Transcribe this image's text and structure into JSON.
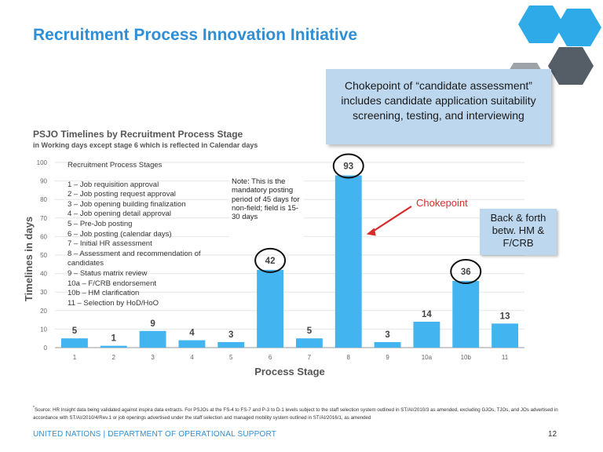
{
  "page": {
    "title": "Recruitment Process Innovation Initiative",
    "callout_main": "Chokepoint of “candidate assessment” includes candidate application suitability screening, testing, and interviewing",
    "callout_back": "Back & forth betw. HM & F/CRB",
    "note": "Note: This is the mandatory posting period of 45 days for non-field; field is 15-30 days",
    "footnote_marker": "*",
    "footnote": "Source: HR Insight data being validated against inspira data extracts. For PSJOs at the FS-4 to FS-7 and P-3 to D-1 levels subject to the staff selection system outlined in ST/AI/2010/3 as amended, excluding GJOs, TJOs, and JOs advertised in accordance with ST/AI/2010/4/Rev.1 or job openings advertised under the staff selection and managed mobility system outlined in ST/AI/2016/1, as amended",
    "footer": "UNITED NATIONS | DEPARTMENT OF OPERATIONAL SUPPORT",
    "page_number": "12",
    "stages_heading": "Recruitment Process Stages",
    "stages": [
      "1 – Job requisition approval",
      "2 – Job posting request approval",
      "3 – Job opening building finalization",
      "4 – Job opening detail approval",
      "5 – Pre-Job posting",
      "6 – Job posting (calendar days)",
      "7 – Initial HR assessment",
      "8 – Assessment and recommendation of candidates",
      "9 – Status matrix review",
      "10a – F/CRB endorsement",
      "10b – HM clarification",
      "11 – Selection by HoD/HoO"
    ]
  },
  "colors": {
    "title": "#2f8fd6",
    "bar": "#42b4f0",
    "callout_bg": "#bdd7ee",
    "chokepoint": "#d82c2c",
    "hex_blue": "#2eaae8",
    "hex_dark": "#555d66",
    "hex_gray": "#9ea3a8"
  },
  "chart_data": {
    "type": "bar",
    "title": "PSJO Timelines by Recruitment Process Stage",
    "subtitle": "in Working days except stage 6 which is reflected in Calendar days",
    "xlabel": "Process Stage",
    "ylabel": "Timelines in days",
    "ylim": [
      0,
      100
    ],
    "yticks": [
      0,
      10,
      20,
      30,
      40,
      50,
      60,
      70,
      80,
      90,
      100
    ],
    "categories": [
      "1",
      "2",
      "3",
      "4",
      "5",
      "6",
      "7",
      "8",
      "9",
      "10a",
      "10b",
      "11"
    ],
    "values": [
      5,
      1,
      9,
      4,
      3,
      42,
      5,
      93,
      3,
      14,
      36,
      13
    ],
    "circled": [
      "6",
      "8",
      "10b"
    ],
    "annotation": "Chokepoint",
    "annotation_target": "8"
  }
}
